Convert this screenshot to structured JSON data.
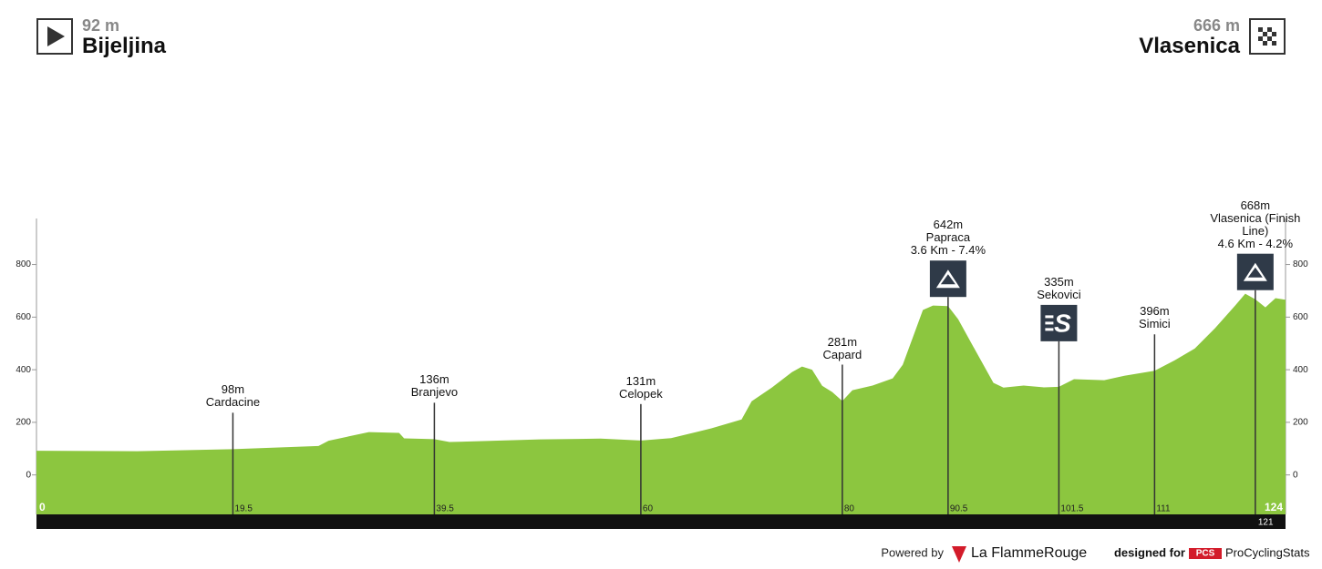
{
  "header": {
    "start_elevation": "92 m",
    "start_name": "Bijeljina",
    "finish_elevation": "666 m",
    "finish_name": "Vlasenica"
  },
  "chart_data": {
    "type": "area",
    "color": "#8cc63f",
    "x": [
      0,
      10,
      19.5,
      28,
      29,
      33,
      36,
      36.5,
      39.5,
      41,
      50,
      56,
      60,
      63,
      67,
      70,
      71,
      73,
      75,
      76,
      77,
      78,
      79,
      80,
      81,
      83,
      85,
      86,
      87,
      88,
      89,
      90.5,
      91.5,
      93,
      95,
      96,
      98,
      100,
      101.5,
      103,
      106,
      108,
      111,
      113,
      115,
      117,
      119,
      120,
      121,
      122,
      123,
      124
    ],
    "values": [
      92,
      90,
      98,
      110,
      130,
      163,
      160,
      139,
      136,
      125,
      135,
      138,
      131,
      140,
      177,
      211,
      280,
      332,
      391,
      412,
      400,
      339,
      315,
      281,
      322,
      340,
      367,
      419,
      523,
      627,
      644,
      642,
      592,
      488,
      350,
      332,
      340,
      333,
      335,
      364,
      360,
      377,
      396,
      436,
      481,
      558,
      644,
      689,
      668,
      637,
      672,
      666
    ],
    "xlim": [
      0,
      124
    ],
    "xticks": [
      0,
      124
    ],
    "ylim": [
      -150,
      975
    ],
    "yticks": [
      0,
      200,
      400,
      600,
      800
    ],
    "markers": [
      {
        "x": 19.5,
        "y": 98,
        "y_label": "98m",
        "name": "Cardacine"
      },
      {
        "x": 39.5,
        "y": 136,
        "y_label": "136m",
        "name": "Branjevo"
      },
      {
        "x": 60,
        "y": 131,
        "y_label": "131m",
        "name": "Celopek"
      },
      {
        "x": 80,
        "y": 281,
        "y_label": "281m",
        "name": "Capard"
      },
      {
        "x": 90.5,
        "y": 642,
        "y_label": "642m",
        "name": "Papraca",
        "detail": "3.6 Km - 7.4%",
        "icon": "climb"
      },
      {
        "x": 101.5,
        "y": 335,
        "y_label": "335m",
        "name": "Sekovici",
        "icon": "sprint"
      },
      {
        "x": 111,
        "y": 396,
        "y_label": "396m",
        "name": "Simici"
      },
      {
        "x": 121,
        "y": 668,
        "y_label": "668m",
        "name": "Vlasenica (Finish Line)",
        "detail": "4.6 Km - 4.2%",
        "icon": "climb",
        "x_label_position": "bar"
      }
    ]
  },
  "footer": {
    "powered": "Powered by",
    "brand": "La FlammeRouge",
    "designed": "designed for",
    "pcs": "PCS",
    "pcs_name": "ProCyclingStats"
  }
}
